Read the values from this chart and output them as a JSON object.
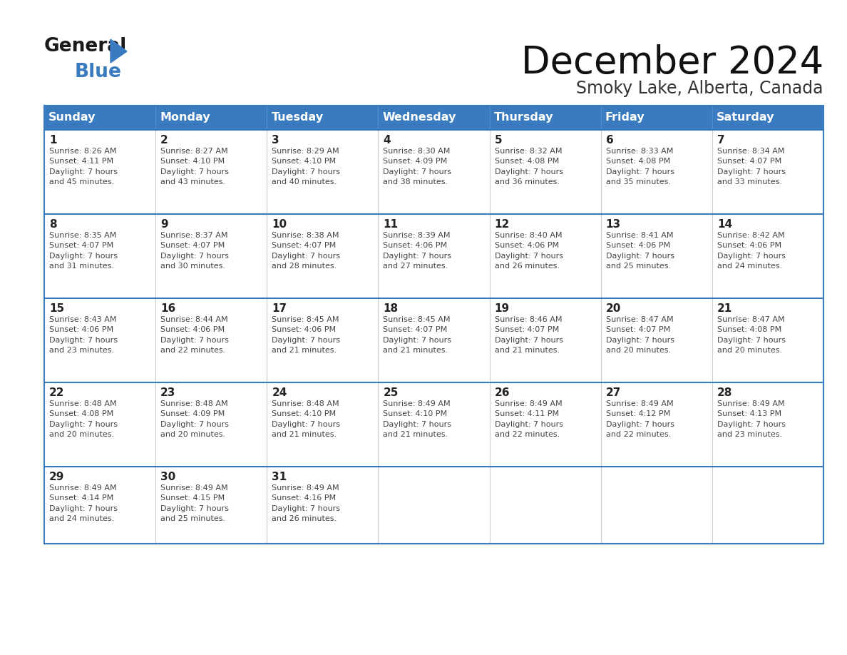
{
  "title": "December 2024",
  "subtitle": "Smoky Lake, Alberta, Canada",
  "header_color": "#3a7abf",
  "header_text_color": "#ffffff",
  "days_of_week": [
    "Sunday",
    "Monday",
    "Tuesday",
    "Wednesday",
    "Thursday",
    "Friday",
    "Saturday"
  ],
  "grid_line_color": "#3a7abf",
  "text_color": "#444444",
  "calendar_data": [
    [
      {
        "day": 1,
        "sunrise": "8:26 AM",
        "sunset": "4:11 PM",
        "daylight": "7 hours and 45 minutes"
      },
      {
        "day": 2,
        "sunrise": "8:27 AM",
        "sunset": "4:10 PM",
        "daylight": "7 hours and 43 minutes"
      },
      {
        "day": 3,
        "sunrise": "8:29 AM",
        "sunset": "4:10 PM",
        "daylight": "7 hours and 40 minutes"
      },
      {
        "day": 4,
        "sunrise": "8:30 AM",
        "sunset": "4:09 PM",
        "daylight": "7 hours and 38 minutes"
      },
      {
        "day": 5,
        "sunrise": "8:32 AM",
        "sunset": "4:08 PM",
        "daylight": "7 hours and 36 minutes"
      },
      {
        "day": 6,
        "sunrise": "8:33 AM",
        "sunset": "4:08 PM",
        "daylight": "7 hours and 35 minutes"
      },
      {
        "day": 7,
        "sunrise": "8:34 AM",
        "sunset": "4:07 PM",
        "daylight": "7 hours and 33 minutes"
      }
    ],
    [
      {
        "day": 8,
        "sunrise": "8:35 AM",
        "sunset": "4:07 PM",
        "daylight": "7 hours and 31 minutes"
      },
      {
        "day": 9,
        "sunrise": "8:37 AM",
        "sunset": "4:07 PM",
        "daylight": "7 hours and 30 minutes"
      },
      {
        "day": 10,
        "sunrise": "8:38 AM",
        "sunset": "4:07 PM",
        "daylight": "7 hours and 28 minutes"
      },
      {
        "day": 11,
        "sunrise": "8:39 AM",
        "sunset": "4:06 PM",
        "daylight": "7 hours and 27 minutes"
      },
      {
        "day": 12,
        "sunrise": "8:40 AM",
        "sunset": "4:06 PM",
        "daylight": "7 hours and 26 minutes"
      },
      {
        "day": 13,
        "sunrise": "8:41 AM",
        "sunset": "4:06 PM",
        "daylight": "7 hours and 25 minutes"
      },
      {
        "day": 14,
        "sunrise": "8:42 AM",
        "sunset": "4:06 PM",
        "daylight": "7 hours and 24 minutes"
      }
    ],
    [
      {
        "day": 15,
        "sunrise": "8:43 AM",
        "sunset": "4:06 PM",
        "daylight": "7 hours and 23 minutes"
      },
      {
        "day": 16,
        "sunrise": "8:44 AM",
        "sunset": "4:06 PM",
        "daylight": "7 hours and 22 minutes"
      },
      {
        "day": 17,
        "sunrise": "8:45 AM",
        "sunset": "4:06 PM",
        "daylight": "7 hours and 21 minutes"
      },
      {
        "day": 18,
        "sunrise": "8:45 AM",
        "sunset": "4:07 PM",
        "daylight": "7 hours and 21 minutes"
      },
      {
        "day": 19,
        "sunrise": "8:46 AM",
        "sunset": "4:07 PM",
        "daylight": "7 hours and 21 minutes"
      },
      {
        "day": 20,
        "sunrise": "8:47 AM",
        "sunset": "4:07 PM",
        "daylight": "7 hours and 20 minutes"
      },
      {
        "day": 21,
        "sunrise": "8:47 AM",
        "sunset": "4:08 PM",
        "daylight": "7 hours and 20 minutes"
      }
    ],
    [
      {
        "day": 22,
        "sunrise": "8:48 AM",
        "sunset": "4:08 PM",
        "daylight": "7 hours and 20 minutes"
      },
      {
        "day": 23,
        "sunrise": "8:48 AM",
        "sunset": "4:09 PM",
        "daylight": "7 hours and 20 minutes"
      },
      {
        "day": 24,
        "sunrise": "8:48 AM",
        "sunset": "4:10 PM",
        "daylight": "7 hours and 21 minutes"
      },
      {
        "day": 25,
        "sunrise": "8:49 AM",
        "sunset": "4:10 PM",
        "daylight": "7 hours and 21 minutes"
      },
      {
        "day": 26,
        "sunrise": "8:49 AM",
        "sunset": "4:11 PM",
        "daylight": "7 hours and 22 minutes"
      },
      {
        "day": 27,
        "sunrise": "8:49 AM",
        "sunset": "4:12 PM",
        "daylight": "7 hours and 22 minutes"
      },
      {
        "day": 28,
        "sunrise": "8:49 AM",
        "sunset": "4:13 PM",
        "daylight": "7 hours and 23 minutes"
      }
    ],
    [
      {
        "day": 29,
        "sunrise": "8:49 AM",
        "sunset": "4:14 PM",
        "daylight": "7 hours and 24 minutes"
      },
      {
        "day": 30,
        "sunrise": "8:49 AM",
        "sunset": "4:15 PM",
        "daylight": "7 hours and 25 minutes"
      },
      {
        "day": 31,
        "sunrise": "8:49 AM",
        "sunset": "4:16 PM",
        "daylight": "7 hours and 26 minutes"
      },
      null,
      null,
      null,
      null
    ]
  ]
}
